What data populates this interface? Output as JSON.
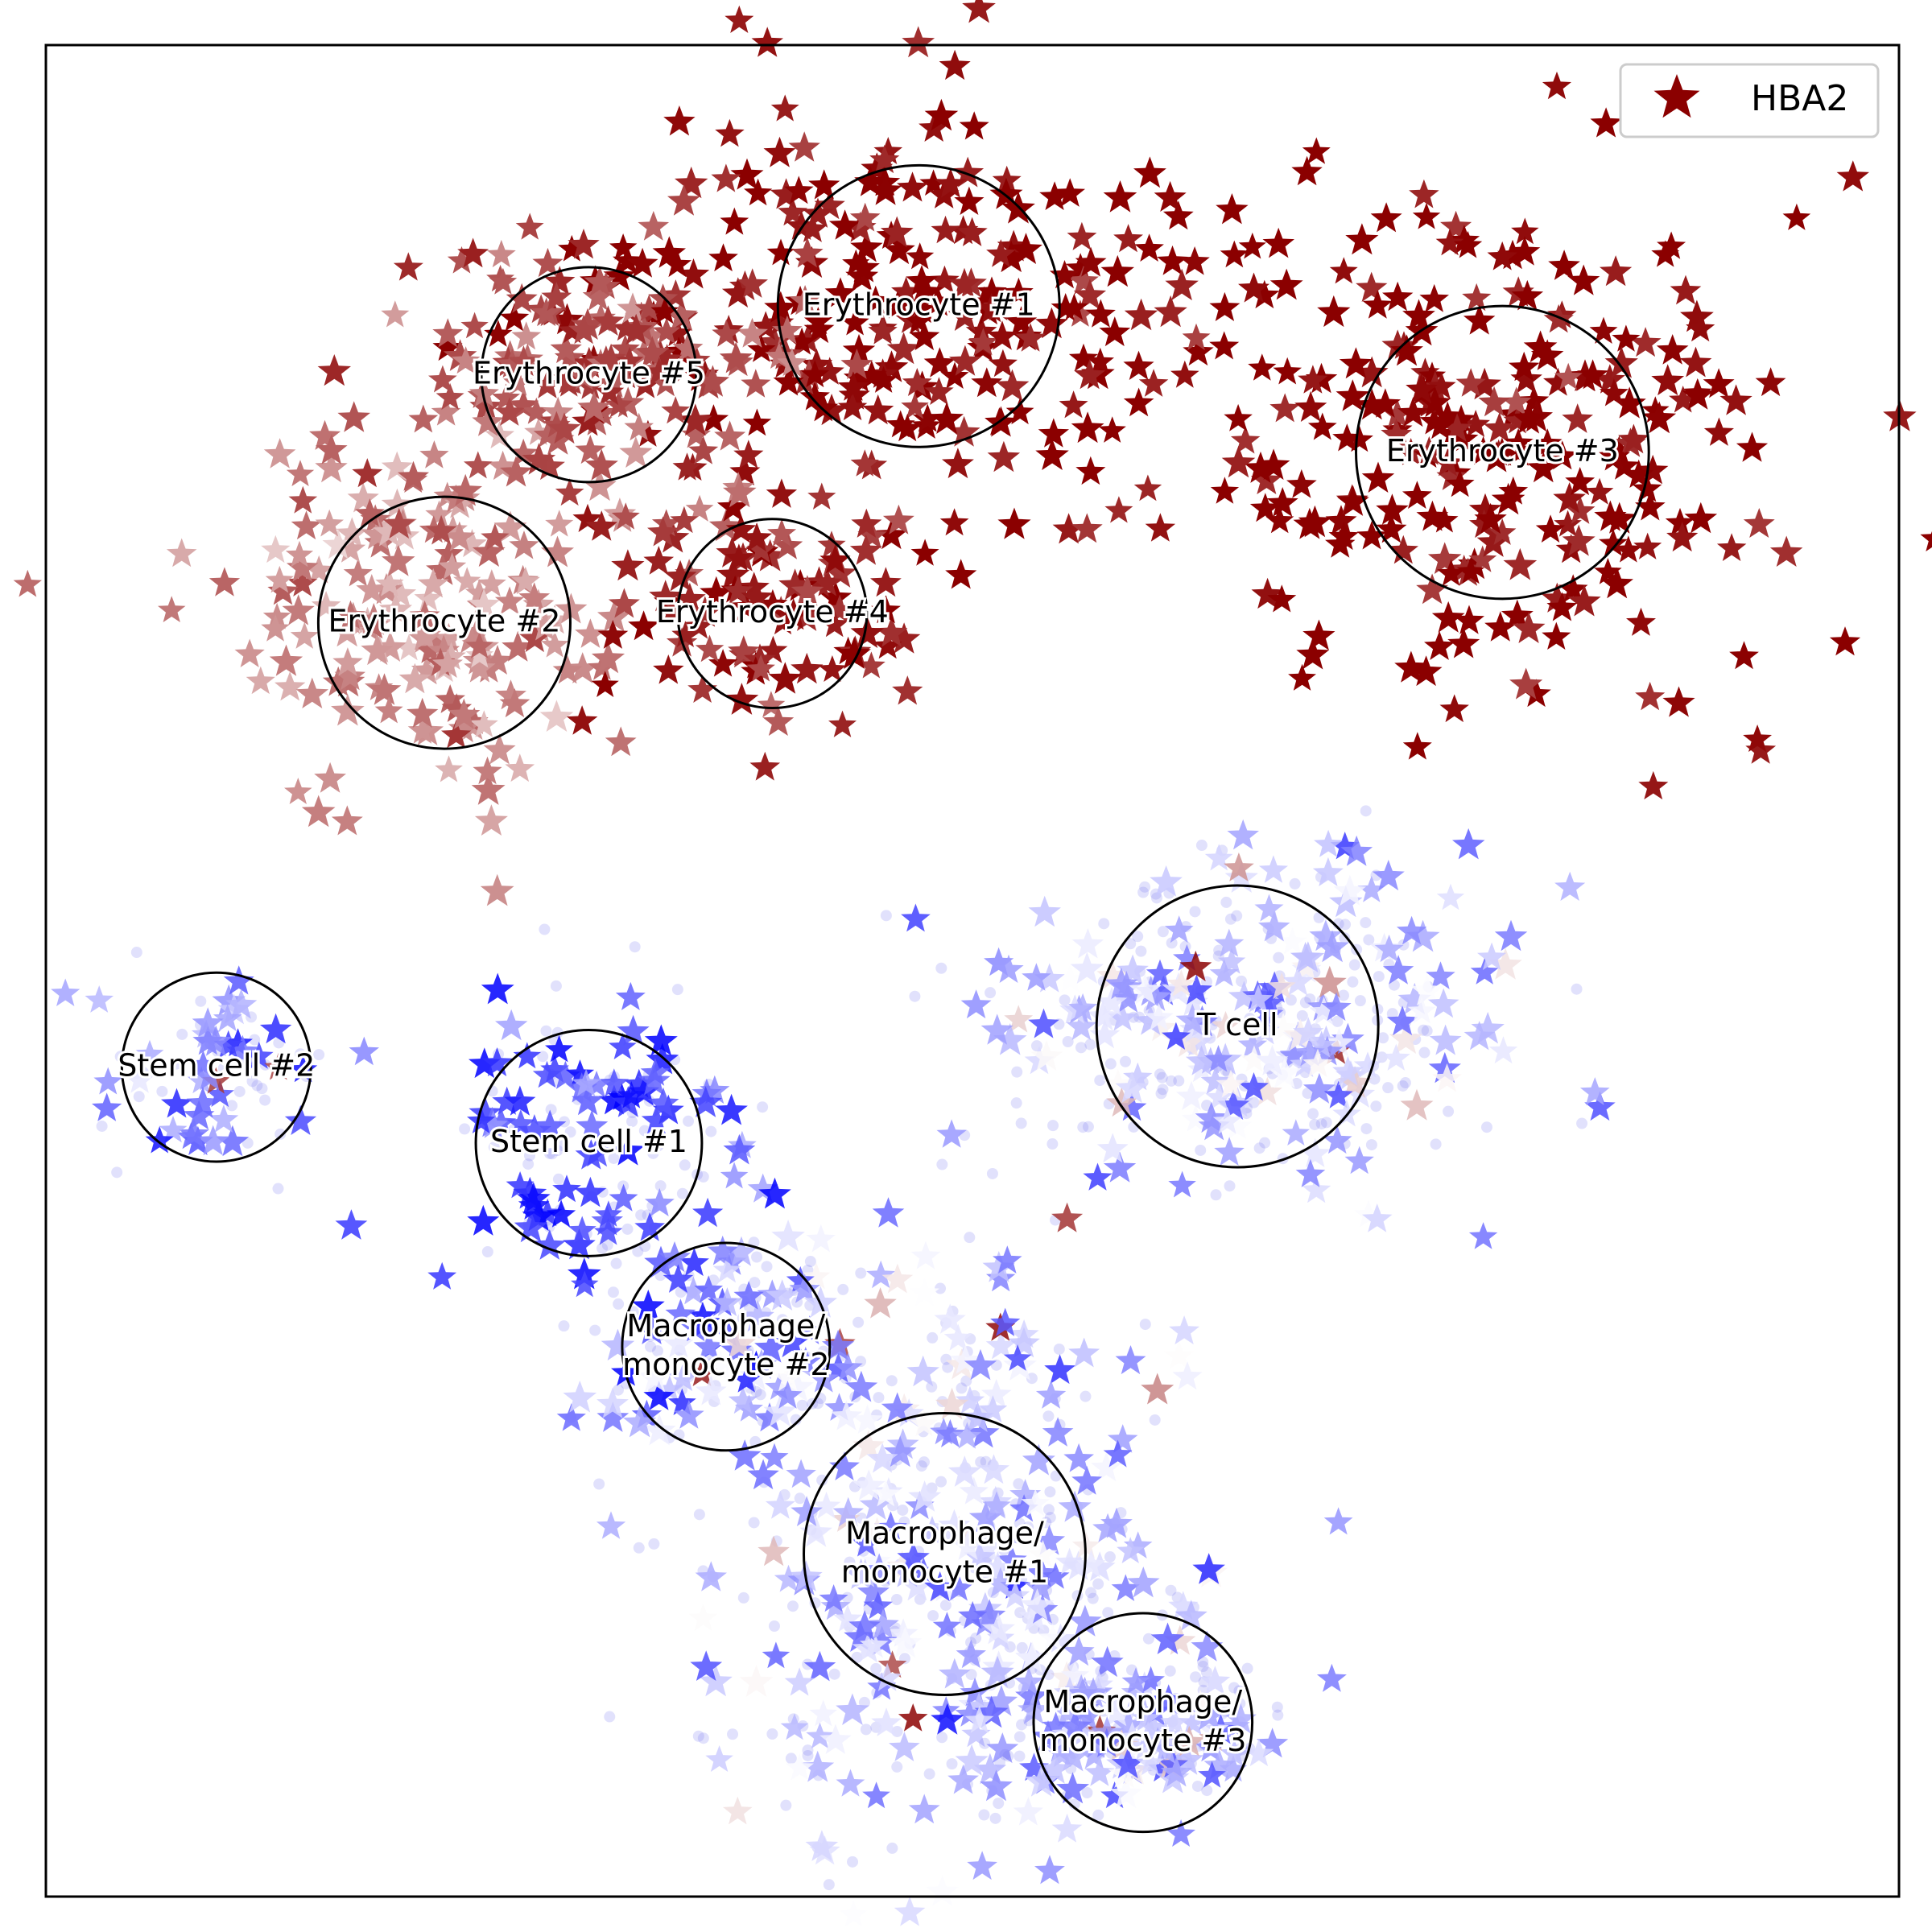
{
  "chart_data": {
    "type": "scatter",
    "description_of_encoding": "2D embedding of single cells; star markers colored by HBA2 expression (blue = low, white = mid, dark red = high); faint blue dots are background cells",
    "legend": [
      {
        "label": "HBA2",
        "marker": "star",
        "color": "#8b0000"
      }
    ],
    "colorscale": {
      "low": "#0000ff",
      "mid": "#ffffff",
      "high": "#8b0000"
    },
    "xlim": [
      0,
      100
    ],
    "ylim": [
      0,
      100
    ],
    "grid": false,
    "ticks": false,
    "clusters": [
      {
        "label": "Erythrocyte #1",
        "x": 47.1,
        "y": 85.9,
        "r": 7.6,
        "hba2": 1.0,
        "spread": [
          9,
          5.5
        ],
        "n": 240
      },
      {
        "label": "Erythrocyte #2",
        "x": 21.5,
        "y": 68.8,
        "r": 6.8,
        "hba2": 0.72,
        "spread": [
          6,
          5
        ],
        "n": 170
      },
      {
        "label": "Erythrocyte #3",
        "x": 78.6,
        "y": 78.0,
        "r": 7.9,
        "hba2": 1.0,
        "spread": [
          8,
          7
        ],
        "n": 240
      },
      {
        "label": "Erythrocyte #4",
        "x": 39.2,
        "y": 69.3,
        "r": 5.1,
        "hba2": 0.95,
        "spread": [
          4.5,
          3
        ],
        "n": 90
      },
      {
        "label": "Erythrocyte #5",
        "x": 29.3,
        "y": 82.2,
        "r": 5.8,
        "hba2": 0.85,
        "spread": [
          6,
          4
        ],
        "n": 150
      },
      {
        "label": "Stem cell #2",
        "x": 9.2,
        "y": 44.8,
        "r": 5.1,
        "hba2": 0.25,
        "spread": [
          3,
          2.5
        ],
        "n": 40
      },
      {
        "label": "Stem cell #1",
        "x": 29.3,
        "y": 40.7,
        "r": 6.1,
        "hba2": 0.12,
        "spread": [
          4,
          4.5
        ],
        "n": 80
      },
      {
        "label": "T cell",
        "x": 64.3,
        "y": 47.0,
        "r": 7.6,
        "hba2": 0.38,
        "spread": [
          7,
          4.5
        ],
        "n": 190
      },
      {
        "label": "Macrophage/\nmonocyte #2",
        "x": 36.7,
        "y": 29.7,
        "r": 5.6,
        "hba2": 0.25,
        "spread": [
          4,
          3.5
        ],
        "n": 70
      },
      {
        "label": "Macrophage/\nmonocyte #1",
        "x": 48.5,
        "y": 18.5,
        "r": 7.6,
        "hba2": 0.38,
        "spread": [
          6,
          7
        ],
        "n": 230
      },
      {
        "label": "Macrophage/\nmonocyte #3",
        "x": 59.2,
        "y": 9.4,
        "r": 5.9,
        "hba2": 0.35,
        "spread": [
          4,
          2.5
        ],
        "n": 90
      }
    ]
  }
}
